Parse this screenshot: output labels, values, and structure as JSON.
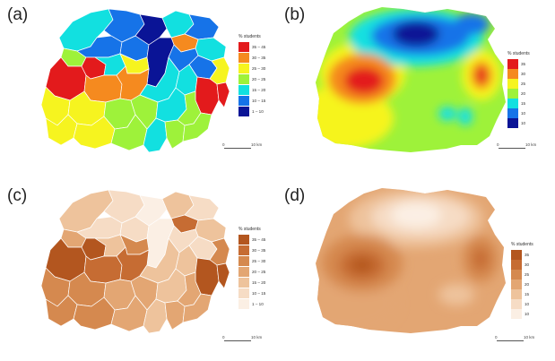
{
  "panels": [
    {
      "id": "a",
      "label": "(a)",
      "legend": {
        "title": "% students",
        "classes": [
          {
            "label": "35 – 45",
            "color": "#e31a1c"
          },
          {
            "label": "30 – 35",
            "color": "#f58a1f"
          },
          {
            "label": "25 – 30",
            "color": "#f6f41f"
          },
          {
            "label": "20 – 25",
            "color": "#9ef23a"
          },
          {
            "label": "15 – 20",
            "color": "#12e0e0"
          },
          {
            "label": "10 – 15",
            "color": "#1673e8"
          },
          {
            "label": "1 – 10",
            "color": "#0a1496"
          }
        ]
      },
      "scale": {
        "zero": "0",
        "distance": "10 km"
      }
    },
    {
      "id": "b",
      "label": "(b)",
      "legend": {
        "title": "% students",
        "classes": [
          {
            "label": "35",
            "color": "#e31a1c"
          },
          {
            "label": "30",
            "color": "#f58a1f"
          },
          {
            "label": "25",
            "color": "#f6f41f"
          },
          {
            "label": "20",
            "color": "#9ef23a"
          },
          {
            "label": "15",
            "color": "#12e0e0"
          },
          {
            "label": "10",
            "color": "#1673e8"
          },
          {
            "label": "10",
            "color": "#0a1496"
          }
        ]
      },
      "scale": {
        "zero": "0",
        "distance": "10 km"
      }
    },
    {
      "id": "c",
      "label": "(c)",
      "legend": {
        "title": "% students",
        "classes": [
          {
            "label": "35 – 45",
            "color": "#b3561f"
          },
          {
            "label": "30 – 35",
            "color": "#c66c33"
          },
          {
            "label": "25 – 30",
            "color": "#d5894f"
          },
          {
            "label": "20 – 25",
            "color": "#e3a673"
          },
          {
            "label": "15 – 20",
            "color": "#eec39c"
          },
          {
            "label": "10 – 15",
            "color": "#f6dcc5"
          },
          {
            "label": "1 – 10",
            "color": "#fbefe4"
          }
        ]
      },
      "scale": {
        "zero": "0",
        "distance": "10 km"
      }
    },
    {
      "id": "d",
      "label": "(d)",
      "legend": {
        "title": "% students",
        "classes": [
          {
            "label": "35",
            "color": "#b3561f"
          },
          {
            "label": "30",
            "color": "#c66c33"
          },
          {
            "label": "25",
            "color": "#d5894f"
          },
          {
            "label": "20",
            "color": "#e3a673"
          },
          {
            "label": "15",
            "color": "#eec39c"
          },
          {
            "label": "10",
            "color": "#f6dcc5"
          },
          {
            "label": "10",
            "color": "#fbefe4"
          }
        ]
      },
      "scale": {
        "zero": "0",
        "distance": "10 km"
      }
    }
  ]
}
